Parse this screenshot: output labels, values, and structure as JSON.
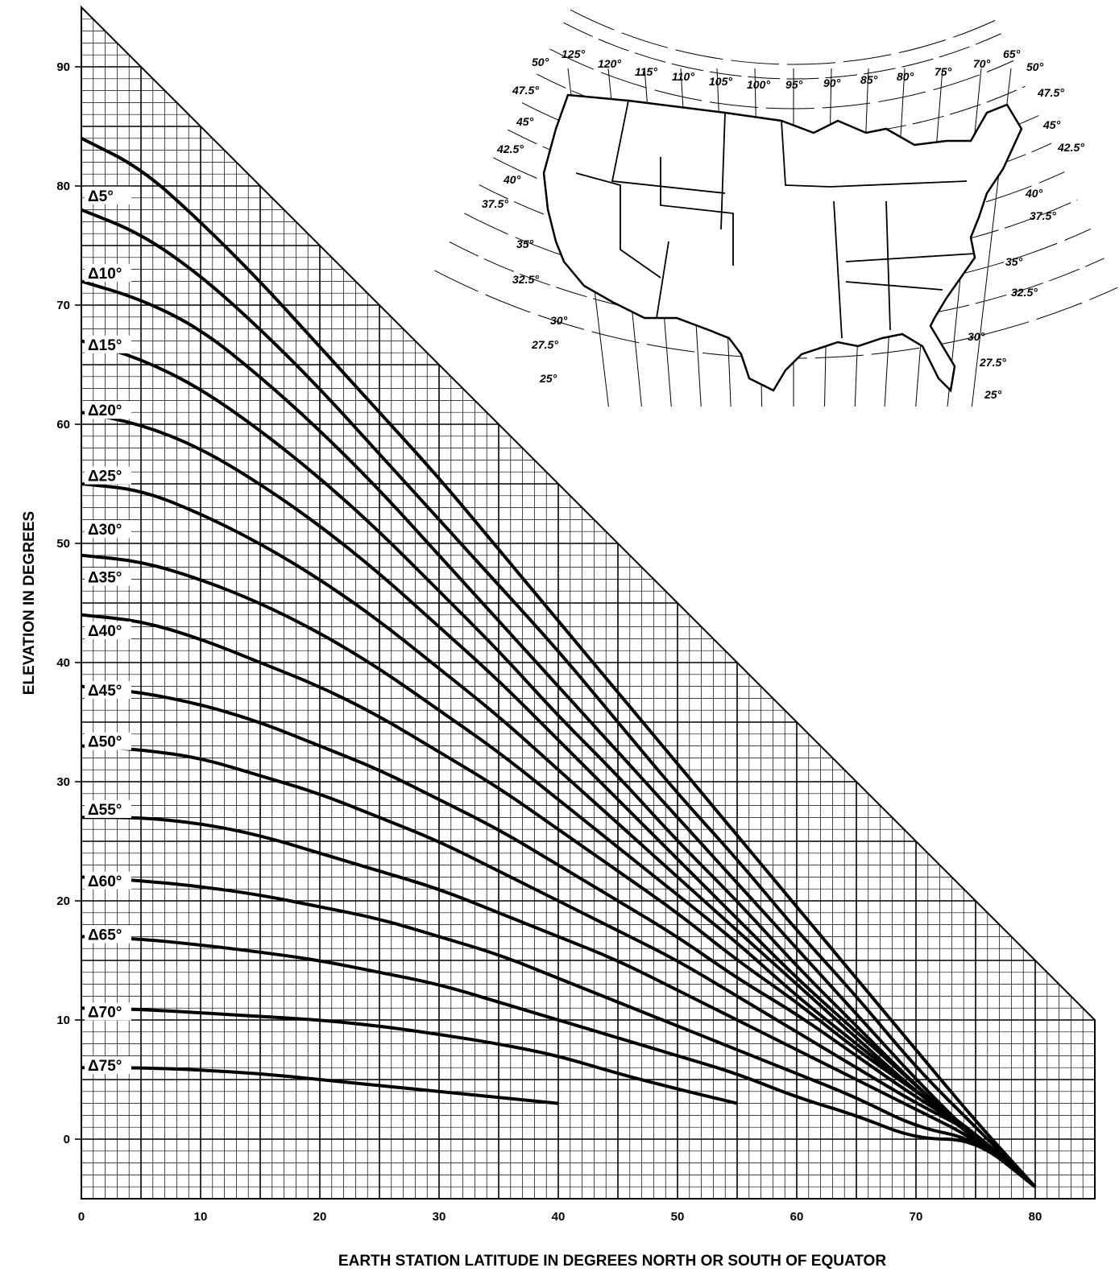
{
  "chart_data": {
    "type": "line",
    "xlabel": "EARTH STATION LATITUDE IN DEGREES NORTH OR SOUTH OF EQUATOR",
    "ylabel": "ELEVATION IN DEGREES",
    "xlim": [
      0,
      85
    ],
    "ylim": [
      -5,
      95
    ],
    "x_ticks": [
      "0",
      "10",
      "20",
      "30",
      "40",
      "50",
      "60",
      "70",
      "80"
    ],
    "y_ticks": [
      "0",
      "10",
      "20",
      "30",
      "40",
      "50",
      "60",
      "70",
      "80",
      "90"
    ],
    "grid": true,
    "series": [
      {
        "name": "Δ5°",
        "x": [
          0,
          5,
          10,
          15,
          20,
          25,
          30,
          35,
          40,
          45,
          50,
          55,
          60,
          65,
          70,
          75,
          80
        ],
        "y": [
          84,
          81.5,
          77,
          72,
          66.5,
          61,
          55.5,
          49.5,
          43.5,
          37.5,
          31.5,
          25.5,
          19.5,
          13.5,
          7.5,
          1.5,
          -4
        ]
      },
      {
        "name": "Δ10°",
        "x": [
          0,
          5,
          10,
          15,
          20,
          25,
          30,
          35,
          40,
          45,
          50,
          55,
          60,
          65,
          70,
          75,
          80
        ],
        "y": [
          78,
          76,
          72.5,
          68,
          63,
          57.5,
          52,
          46.5,
          41,
          35,
          29,
          23.5,
          17.5,
          12,
          6,
          1,
          -4
        ]
      },
      {
        "name": "Δ15°",
        "x": [
          0,
          5,
          10,
          15,
          20,
          25,
          30,
          35,
          40,
          45,
          50,
          55,
          60,
          65,
          70,
          75,
          80
        ],
        "y": [
          72,
          70.5,
          68,
          64,
          59.5,
          54.5,
          49,
          43.5,
          38,
          32.5,
          27,
          21.5,
          16,
          10.5,
          5,
          0,
          -4
        ]
      },
      {
        "name": "Δ20°",
        "x": [
          0,
          5,
          10,
          15,
          20,
          25,
          30,
          35,
          40,
          45,
          50,
          55,
          60,
          65,
          70,
          75,
          80
        ],
        "y": [
          67,
          65.5,
          63,
          59.5,
          55.5,
          51,
          46,
          41,
          35.5,
          30.5,
          25,
          20,
          14.5,
          9.5,
          4.5,
          0,
          -4
        ]
      },
      {
        "name": "Δ25°",
        "x": [
          0,
          5,
          10,
          15,
          20,
          25,
          30,
          35,
          40,
          45,
          50,
          55,
          60,
          65,
          70,
          75,
          80
        ],
        "y": [
          61,
          60,
          58,
          55,
          51.5,
          47.5,
          43,
          38.5,
          33.5,
          28.5,
          23.5,
          18.5,
          13.5,
          9,
          4.5,
          0,
          -4
        ]
      },
      {
        "name": "Δ30°",
        "x": [
          0,
          5,
          10,
          15,
          20,
          25,
          30,
          35,
          40,
          45,
          50,
          55,
          60,
          65,
          70,
          75,
          80
        ],
        "y": [
          55,
          54.5,
          52.5,
          50,
          47,
          43.5,
          39.5,
          35.5,
          31,
          26.5,
          22,
          17.5,
          13,
          8.5,
          4,
          0,
          -4
        ]
      },
      {
        "name": "Δ35°",
        "x": [
          0,
          5,
          10,
          15,
          20,
          25,
          30,
          35,
          40,
          45,
          50,
          55,
          60,
          65,
          70,
          75,
          80
        ],
        "y": [
          49,
          48.5,
          47,
          45,
          42.5,
          39.5,
          36,
          32.5,
          28.5,
          24.5,
          20.5,
          16.5,
          12,
          8,
          4,
          0.5,
          -4
        ]
      },
      {
        "name": "Δ40°",
        "x": [
          0,
          5,
          10,
          15,
          20,
          25,
          30,
          35,
          40,
          45,
          50,
          55,
          60,
          65,
          70,
          75,
          80
        ],
        "y": [
          44,
          43.5,
          42,
          40,
          38,
          35.5,
          32.5,
          29.5,
          26,
          22.5,
          19,
          15,
          11.5,
          7.5,
          4,
          0.5,
          -4
        ]
      },
      {
        "name": "Δ45°",
        "x": [
          0,
          5,
          10,
          15,
          20,
          25,
          30,
          35,
          40,
          45,
          50,
          55,
          60,
          65,
          70,
          75,
          80
        ],
        "y": [
          38,
          37.5,
          36.5,
          35,
          33,
          31,
          28.5,
          26,
          23,
          20,
          17,
          13.5,
          10.5,
          7,
          3.5,
          0.5,
          -4
        ]
      },
      {
        "name": "Δ50°",
        "x": [
          0,
          5,
          10,
          15,
          20,
          25,
          30,
          35,
          40,
          45,
          50,
          55,
          60,
          65,
          70,
          75,
          80
        ],
        "y": [
          33,
          32.7,
          32,
          30.5,
          29,
          27,
          25,
          22.5,
          20,
          17.5,
          15,
          12,
          9,
          6,
          3,
          0.5,
          -4
        ]
      },
      {
        "name": "Δ55°",
        "x": [
          0,
          5,
          10,
          15,
          20,
          25,
          30,
          35,
          40,
          45,
          50,
          55,
          60,
          65,
          70,
          75,
          80
        ],
        "y": [
          27,
          27,
          26.5,
          25.5,
          24,
          22.5,
          21,
          19,
          17,
          15,
          12.5,
          10,
          7.5,
          5,
          2.5,
          0,
          -4
        ]
      },
      {
        "name": "Δ60°",
        "x": [
          0,
          5,
          10,
          15,
          20,
          25,
          30,
          35,
          40,
          45,
          50,
          55,
          60,
          65,
          70,
          75,
          80
        ],
        "y": [
          22,
          21.7,
          21.2,
          20.5,
          19.5,
          18.5,
          17,
          15.5,
          13.5,
          11.5,
          9.5,
          7.5,
          5.5,
          3.5,
          1,
          0,
          -4
        ]
      },
      {
        "name": "Δ65°",
        "x": [
          0,
          5,
          10,
          15,
          20,
          25,
          30,
          35,
          40,
          45,
          50,
          55,
          60,
          65,
          70,
          75,
          80
        ],
        "y": [
          17,
          16.8,
          16.3,
          15.7,
          15,
          14,
          13,
          11.5,
          10,
          8.5,
          7,
          5.5,
          3.5,
          2,
          0,
          0,
          -4
        ]
      },
      {
        "name": "Δ70°",
        "x": [
          0,
          5,
          10,
          15,
          20,
          25,
          30,
          35,
          40,
          45,
          50,
          55
        ],
        "y": [
          11,
          10.9,
          10.6,
          10.3,
          10,
          9.5,
          8.8,
          8,
          7,
          5.5,
          4.2,
          3
        ]
      },
      {
        "name": "Δ75°",
        "x": [
          0,
          5,
          10,
          15,
          20,
          25,
          30,
          35,
          40
        ],
        "y": [
          6,
          6,
          5.8,
          5.5,
          5,
          4.5,
          4,
          3.5,
          3
        ]
      }
    ],
    "curve_labels": [
      "Δ5°",
      "Δ10°",
      "Δ15°",
      "Δ20°",
      "Δ25°",
      "Δ30°",
      "Δ35°",
      "Δ40°",
      "Δ45°",
      "Δ50°",
      "Δ55°",
      "Δ60°",
      "Δ65°",
      "Δ70°",
      "Δ75°"
    ]
  },
  "map_inset": {
    "longitude_labels": [
      "125°",
      "120°",
      "115°",
      "110°",
      "105°",
      "100°",
      "95°",
      "90°",
      "85°",
      "80°",
      "75°",
      "70°",
      "65°"
    ],
    "latitude_labels_left": [
      "50°",
      "47.5°",
      "45°",
      "42.5°",
      "40°",
      "37.5°",
      "35°",
      "32.5°",
      "30°",
      "27.5°",
      "25°"
    ],
    "latitude_labels_right": [
      "50°",
      "47.5°",
      "45°",
      "42.5°",
      "40°",
      "37.5°",
      "35°",
      "32.5°",
      "30°",
      "27.5°",
      "25°"
    ]
  }
}
